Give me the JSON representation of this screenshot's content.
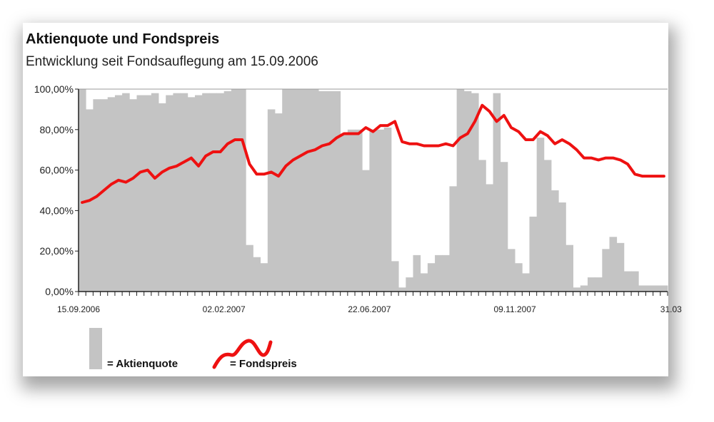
{
  "chart_data": {
    "type": "bar+line",
    "title": "Aktienquote und Fondspreis",
    "subtitle": "Entwicklung seit Fondsauflegung am 15.09.2006",
    "ylim": [
      0,
      100
    ],
    "y_ticks": [
      "0,00%",
      "20,00%",
      "40,00%",
      "60,00%",
      "80,00%",
      "100,00%"
    ],
    "y_tick_values": [
      0,
      20,
      40,
      60,
      80,
      100
    ],
    "x_tick_labels": [
      "15.09.2006",
      "02.02.2007",
      "22.06.2007",
      "09.11.2007",
      "31.03"
    ],
    "x_tick_positions": [
      0,
      20,
      40,
      60,
      80
    ],
    "x_count": 81,
    "grid": false,
    "bar_color": "#c4c4c4",
    "line_color": "#ee1111",
    "series": [
      {
        "name": "Aktienquote",
        "type": "bar",
        "values": [
          100,
          90,
          95,
          95,
          96,
          97,
          98,
          95,
          97,
          97,
          98,
          93,
          97,
          98,
          98,
          96,
          97,
          98,
          98,
          98,
          99,
          100,
          100,
          23,
          17,
          14,
          90,
          88,
          100,
          100,
          100,
          100,
          100,
          99,
          99,
          99,
          78,
          80,
          80,
          60,
          80,
          80,
          81,
          15,
          2,
          7,
          18,
          9,
          14,
          18,
          18,
          52,
          100,
          99,
          98,
          65,
          53,
          98,
          64,
          21,
          14,
          9,
          37,
          76,
          65,
          50,
          44,
          23,
          2,
          3,
          7,
          7,
          21,
          27,
          24,
          10,
          10,
          3,
          3,
          3,
          3
        ]
      },
      {
        "name": "Fondspreis",
        "type": "line",
        "values": [
          44,
          45,
          47,
          50,
          53,
          55,
          54,
          56,
          59,
          60,
          56,
          59,
          61,
          62,
          64,
          66,
          62,
          67,
          69,
          69,
          73,
          75,
          75,
          63,
          58,
          58,
          59,
          57,
          62,
          65,
          67,
          69,
          70,
          72,
          73,
          76,
          78,
          78,
          78,
          81,
          79,
          82,
          82,
          84,
          74,
          73,
          73,
          72,
          72,
          72,
          73,
          72,
          76,
          78,
          84,
          92,
          89,
          84,
          87,
          81,
          79,
          75,
          75,
          79,
          77,
          73,
          75,
          73,
          70,
          66,
          66,
          65,
          66,
          66,
          65,
          63,
          58,
          57,
          57,
          57,
          57
        ]
      }
    ],
    "legend": [
      {
        "label": "= Aktienquote"
      },
      {
        "label": "= Fondspreis"
      }
    ]
  }
}
